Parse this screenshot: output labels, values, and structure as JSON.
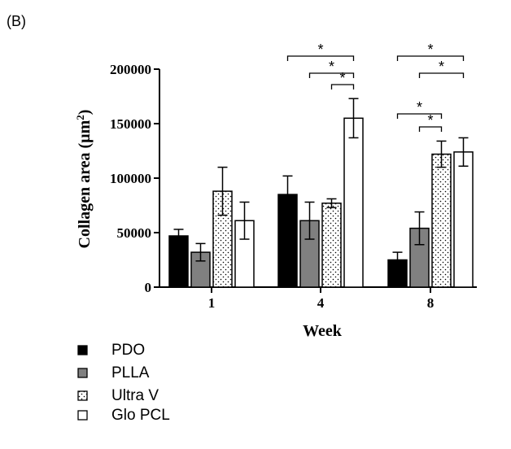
{
  "panel_label": "(B)",
  "chart_data": {
    "type": "bar",
    "categories": [
      "1",
      "4",
      "8"
    ],
    "xlabel": "Week",
    "ylabel": "Collagen area (µm²)",
    "ylabel_text": "Collagen area (µm",
    "ylabel_sup": "2",
    "ylabel_close": ")",
    "ylim": [
      0,
      200000
    ],
    "yticks": [
      0,
      50000,
      100000,
      150000,
      200000
    ],
    "ytick_labels": [
      "0",
      "50000",
      "100000",
      "150000",
      "200000"
    ],
    "grid": false,
    "legend_position": "bottom-left",
    "series": [
      {
        "name": "PDO",
        "fill": "solid-black",
        "values": [
          47000,
          85000,
          25000
        ],
        "errors": [
          6000,
          17000,
          7000
        ]
      },
      {
        "name": "PLLA",
        "fill": "solid-gray",
        "values": [
          32000,
          61000,
          54000
        ],
        "errors": [
          8000,
          17000,
          15000
        ]
      },
      {
        "name": "Ultra V",
        "fill": "dotted",
        "values": [
          88000,
          77000,
          122000
        ],
        "errors": [
          22000,
          4000,
          12000
        ]
      },
      {
        "name": "Glo PCL",
        "fill": "white",
        "values": [
          61000,
          155000,
          124000
        ],
        "errors": [
          17000,
          18000,
          13000
        ]
      }
    ],
    "significance": [
      {
        "category": "4",
        "from": "PDO",
        "to": "Glo PCL",
        "label": "*"
      },
      {
        "category": "4",
        "from": "PLLA",
        "to": "Glo PCL",
        "label": "*"
      },
      {
        "category": "4",
        "from": "Ultra V",
        "to": "Glo PCL",
        "label": "*"
      },
      {
        "category": "8",
        "from": "PDO",
        "to": "Glo PCL",
        "label": "*"
      },
      {
        "category": "8",
        "from": "PLLA",
        "to": "Glo PCL",
        "label": "*"
      },
      {
        "category": "8",
        "from": "PDO",
        "to": "Ultra V",
        "label": "*"
      },
      {
        "category": "8",
        "from": "PLLA",
        "to": "Ultra V",
        "label": "*"
      }
    ],
    "colors": {
      "PDO": "#000000",
      "PLLA": "#808080",
      "Ultra V": "#ffffff",
      "Glo PCL": "#ffffff"
    }
  }
}
